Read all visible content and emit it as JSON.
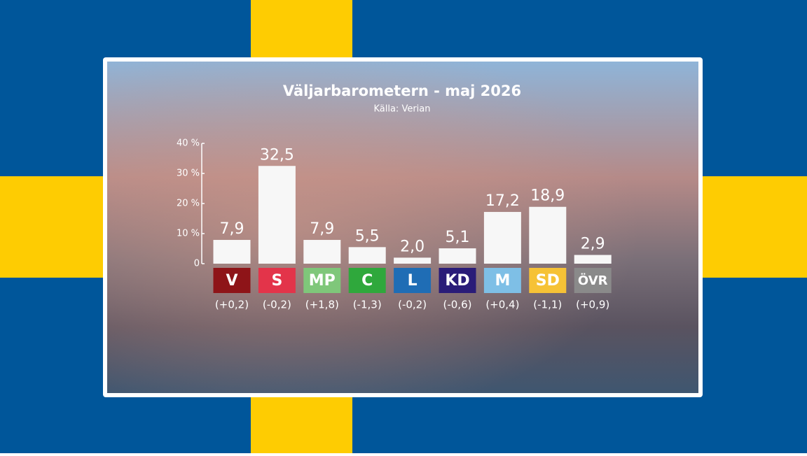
{
  "chart_data": {
    "type": "bar",
    "title": "Väljarbarometern - maj 2026",
    "subtitle": "Källa: Verian",
    "categories": [
      "V",
      "S",
      "MP",
      "C",
      "L",
      "KD",
      "M",
      "SD",
      "ÖVR"
    ],
    "values": [
      7.9,
      32.5,
      7.9,
      5.5,
      2.0,
      5.1,
      17.2,
      18.9,
      2.9
    ],
    "value_labels": [
      "7,9",
      "32,5",
      "7,9",
      "5,5",
      "2,0",
      "5,1",
      "17,2",
      "18,9",
      "2,9"
    ],
    "change_labels": [
      "(+0,2)",
      "(-0,2)",
      "(+1,8)",
      "(-1,3)",
      "(-0,2)",
      "(-0,6)",
      "(+0,4)",
      "(-1,1)",
      "(+0,9)"
    ],
    "color": "#f7f7f7",
    "category_colors": [
      "#8e1418",
      "#e3344a",
      "#7fc77a",
      "#2fa83c",
      "#1f6db5",
      "#2a1c78",
      "#7ebfe6",
      "#f6c236",
      "#8a8a8a"
    ],
    "ylim": [
      0,
      40
    ],
    "yticks": [
      0,
      {
        "value": 10,
        "label": "10 %"
      },
      {
        "value": 20,
        "label": "20 %"
      },
      {
        "value": 30,
        "label": "30 %"
      },
      {
        "value": 40,
        "label": "40 %"
      }
    ],
    "grid": false
  }
}
